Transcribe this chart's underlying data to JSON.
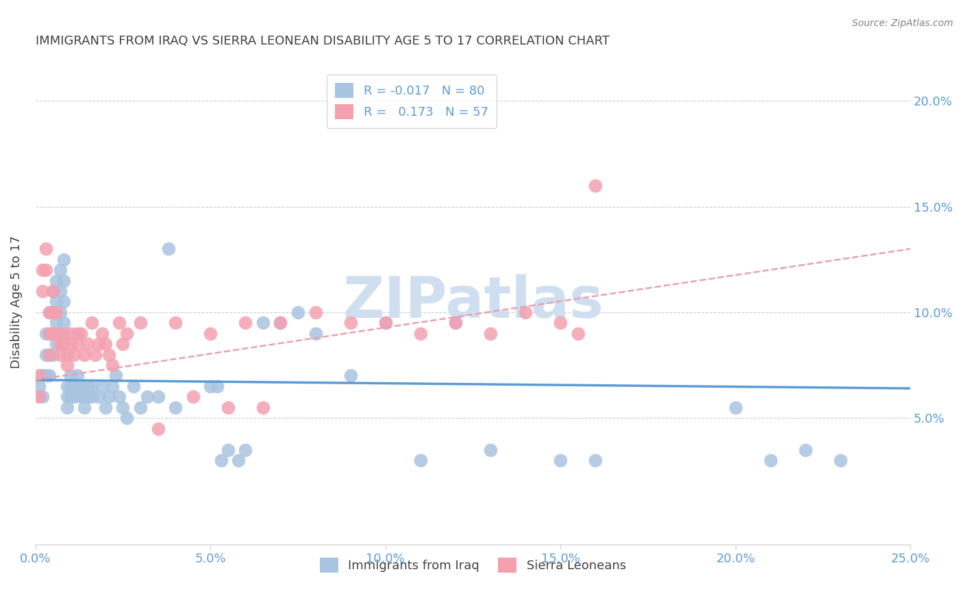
{
  "title": "IMMIGRANTS FROM IRAQ VS SIERRA LEONEAN DISABILITY AGE 5 TO 17 CORRELATION CHART",
  "source": "Source: ZipAtlas.com",
  "xlabel_ticks": [
    "0.0%",
    "5.0%",
    "10.0%",
    "15.0%",
    "20.0%",
    "25.0%"
  ],
  "xlabel_vals": [
    0.0,
    0.05,
    0.1,
    0.15,
    0.2,
    0.25
  ],
  "ylabel_ticks": [
    "5.0%",
    "10.0%",
    "15.0%",
    "20.0%"
  ],
  "ylabel_vals": [
    0.05,
    0.1,
    0.15,
    0.2
  ],
  "xlim": [
    0.0,
    0.25
  ],
  "ylim": [
    -0.01,
    0.22
  ],
  "watermark": "ZIPatlas",
  "legend": [
    {
      "label": "R = -0.017   N = 80",
      "color": "#a8c4e0"
    },
    {
      "label": "R =   0.173   N = 57",
      "color": "#f4a0b0"
    }
  ],
  "iraq_scatter_x": [
    0.001,
    0.002,
    0.002,
    0.003,
    0.003,
    0.003,
    0.004,
    0.004,
    0.004,
    0.004,
    0.005,
    0.005,
    0.005,
    0.005,
    0.006,
    0.006,
    0.006,
    0.006,
    0.007,
    0.007,
    0.007,
    0.007,
    0.008,
    0.008,
    0.008,
    0.008,
    0.009,
    0.009,
    0.009,
    0.01,
    0.01,
    0.01,
    0.011,
    0.011,
    0.012,
    0.012,
    0.013,
    0.013,
    0.014,
    0.014,
    0.015,
    0.015,
    0.016,
    0.016,
    0.018,
    0.019,
    0.02,
    0.021,
    0.022,
    0.023,
    0.024,
    0.025,
    0.026,
    0.028,
    0.03,
    0.032,
    0.035,
    0.038,
    0.04,
    0.05,
    0.052,
    0.053,
    0.055,
    0.058,
    0.06,
    0.065,
    0.07,
    0.075,
    0.08,
    0.09,
    0.1,
    0.11,
    0.12,
    0.13,
    0.15,
    0.16,
    0.2,
    0.21,
    0.22,
    0.23
  ],
  "iraq_scatter_y": [
    0.065,
    0.07,
    0.06,
    0.09,
    0.08,
    0.07,
    0.1,
    0.09,
    0.08,
    0.07,
    0.11,
    0.1,
    0.09,
    0.08,
    0.115,
    0.105,
    0.095,
    0.085,
    0.12,
    0.11,
    0.1,
    0.09,
    0.125,
    0.115,
    0.105,
    0.095,
    0.065,
    0.06,
    0.055,
    0.07,
    0.065,
    0.06,
    0.065,
    0.06,
    0.07,
    0.065,
    0.065,
    0.06,
    0.06,
    0.055,
    0.065,
    0.06,
    0.065,
    0.06,
    0.06,
    0.065,
    0.055,
    0.06,
    0.065,
    0.07,
    0.06,
    0.055,
    0.05,
    0.065,
    0.055,
    0.06,
    0.06,
    0.13,
    0.055,
    0.065,
    0.065,
    0.03,
    0.035,
    0.03,
    0.035,
    0.095,
    0.095,
    0.1,
    0.09,
    0.07,
    0.095,
    0.03,
    0.095,
    0.035,
    0.03,
    0.03,
    0.055,
    0.03,
    0.035,
    0.03
  ],
  "sierra_scatter_x": [
    0.001,
    0.001,
    0.002,
    0.002,
    0.003,
    0.003,
    0.004,
    0.004,
    0.004,
    0.005,
    0.005,
    0.005,
    0.006,
    0.006,
    0.007,
    0.007,
    0.008,
    0.008,
    0.009,
    0.009,
    0.01,
    0.01,
    0.011,
    0.012,
    0.012,
    0.013,
    0.014,
    0.015,
    0.016,
    0.017,
    0.018,
    0.019,
    0.02,
    0.021,
    0.022,
    0.024,
    0.025,
    0.026,
    0.03,
    0.035,
    0.04,
    0.045,
    0.05,
    0.055,
    0.06,
    0.065,
    0.07,
    0.08,
    0.09,
    0.1,
    0.11,
    0.12,
    0.13,
    0.14,
    0.15,
    0.155,
    0.16
  ],
  "sierra_scatter_y": [
    0.07,
    0.06,
    0.12,
    0.11,
    0.13,
    0.12,
    0.1,
    0.09,
    0.08,
    0.11,
    0.1,
    0.09,
    0.1,
    0.09,
    0.085,
    0.08,
    0.09,
    0.085,
    0.08,
    0.075,
    0.09,
    0.085,
    0.08,
    0.09,
    0.085,
    0.09,
    0.08,
    0.085,
    0.095,
    0.08,
    0.085,
    0.09,
    0.085,
    0.08,
    0.075,
    0.095,
    0.085,
    0.09,
    0.095,
    0.045,
    0.095,
    0.06,
    0.09,
    0.055,
    0.095,
    0.055,
    0.095,
    0.1,
    0.095,
    0.095,
    0.09,
    0.095,
    0.09,
    0.1,
    0.095,
    0.09,
    0.16
  ],
  "iraq_line_x": [
    0.0,
    0.25
  ],
  "iraq_line_y": [
    0.068,
    0.064
  ],
  "sierra_line_x": [
    0.0,
    0.25
  ],
  "sierra_line_y": [
    0.068,
    0.13
  ],
  "iraq_color": "#5b9bd5",
  "sierra_color": "#f4a0b0",
  "iraq_scatter_color": "#a8c4e0",
  "sierra_scatter_color": "#f4a0b0",
  "title_color": "#404040",
  "axis_color": "#5b9bd5",
  "grid_color": "#cccccc",
  "watermark_color": "#d0dff0"
}
